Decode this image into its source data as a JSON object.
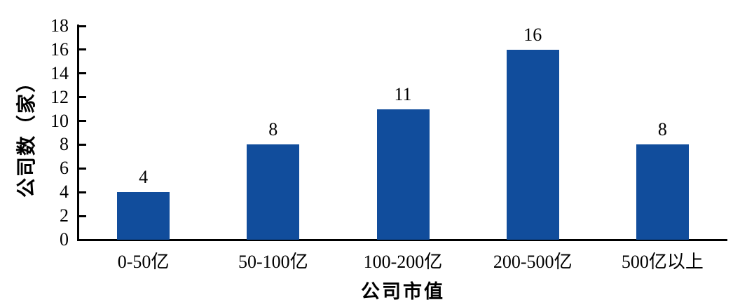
{
  "chart_data": {
    "type": "bar",
    "title": "",
    "categories": [
      "0-50亿",
      "50-100亿",
      "100-200亿",
      "200-500亿",
      "500亿以上"
    ],
    "values": [
      4,
      8,
      11,
      16,
      8
    ],
    "data_labels": [
      "4",
      "8",
      "11",
      "16",
      "8"
    ],
    "xlabel": "公司市值",
    "ylabel": "公司数（家）",
    "ylim": [
      0,
      18
    ],
    "ytick_step": 2,
    "yticks": [
      "0",
      "2",
      "4",
      "6",
      "8",
      "10",
      "12",
      "14",
      "16",
      "18"
    ],
    "bar_color": "#114D9C",
    "axis_color": "#000000",
    "text_color": "#000000",
    "background": "#FFFFFF",
    "grid": false,
    "legend": "none"
  }
}
